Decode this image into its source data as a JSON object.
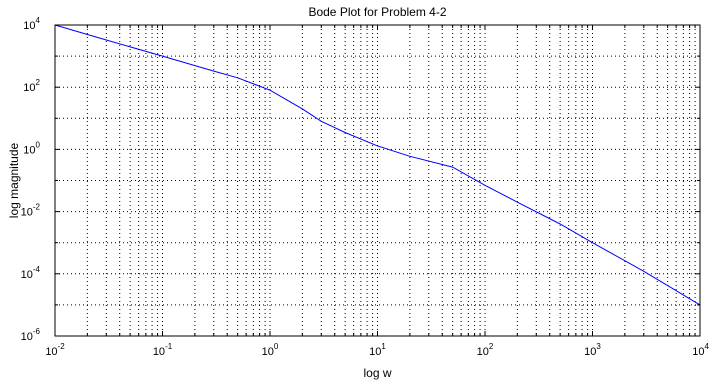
{
  "chart_data": {
    "type": "line",
    "title": "Bode Plot for Problem 4-2",
    "xlabel": "log w",
    "ylabel": "log magnitude",
    "x_scale": "log",
    "y_scale": "log",
    "xlim": [
      0.01,
      10000
    ],
    "ylim": [
      1e-06,
      10000
    ],
    "grid": true,
    "x_ticks": [
      {
        "base": "10",
        "exp": "-2",
        "value": 0.01
      },
      {
        "base": "10",
        "exp": "-1",
        "value": 0.1
      },
      {
        "base": "10",
        "exp": "0",
        "value": 1
      },
      {
        "base": "10",
        "exp": "1",
        "value": 10
      },
      {
        "base": "10",
        "exp": "2",
        "value": 100
      },
      {
        "base": "10",
        "exp": "3",
        "value": 1000
      },
      {
        "base": "10",
        "exp": "4",
        "value": 10000
      }
    ],
    "y_ticks": [
      {
        "base": "10",
        "exp": "-6",
        "value": 1e-06
      },
      {
        "base": "10",
        "exp": "-4",
        "value": 0.0001
      },
      {
        "base": "10",
        "exp": "-2",
        "value": 0.01
      },
      {
        "base": "10",
        "exp": "0",
        "value": 1
      },
      {
        "base": "10",
        "exp": "2",
        "value": 100
      },
      {
        "base": "10",
        "exp": "4",
        "value": 10000
      }
    ],
    "series": [
      {
        "color": "#0000ff",
        "x": [
          0.01,
          0.03,
          0.1,
          0.3,
          0.5,
          1,
          2,
          3,
          5,
          10,
          20,
          50,
          100,
          200,
          500,
          1000,
          3000,
          10000
        ],
        "y": [
          10000,
          3300,
          1000,
          330,
          200,
          80,
          20,
          8,
          3.5,
          1.3,
          0.6,
          0.27,
          0.07,
          0.02,
          0.004,
          0.001,
          0.00012,
          1e-05
        ]
      }
    ]
  }
}
